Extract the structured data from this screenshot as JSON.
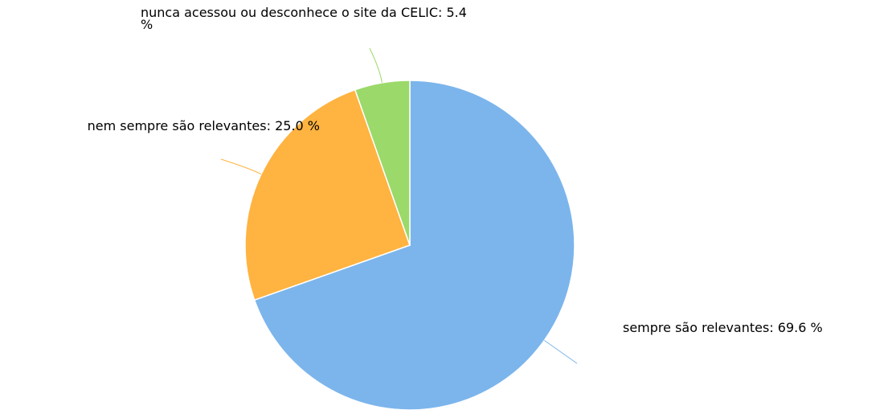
{
  "chart_data": {
    "type": "pie",
    "values": [
      69.6,
      25.0,
      5.4
    ],
    "value_labels": [
      "sempre são relevantes: 69.6 %",
      "nem sempre são relevantes: 25.0 %",
      "nunca acessou ou desconhece o site da CELIC: 5.4 %"
    ],
    "colors": [
      "#7cb5ec",
      "#ffb340",
      "#9bd96a"
    ]
  }
}
